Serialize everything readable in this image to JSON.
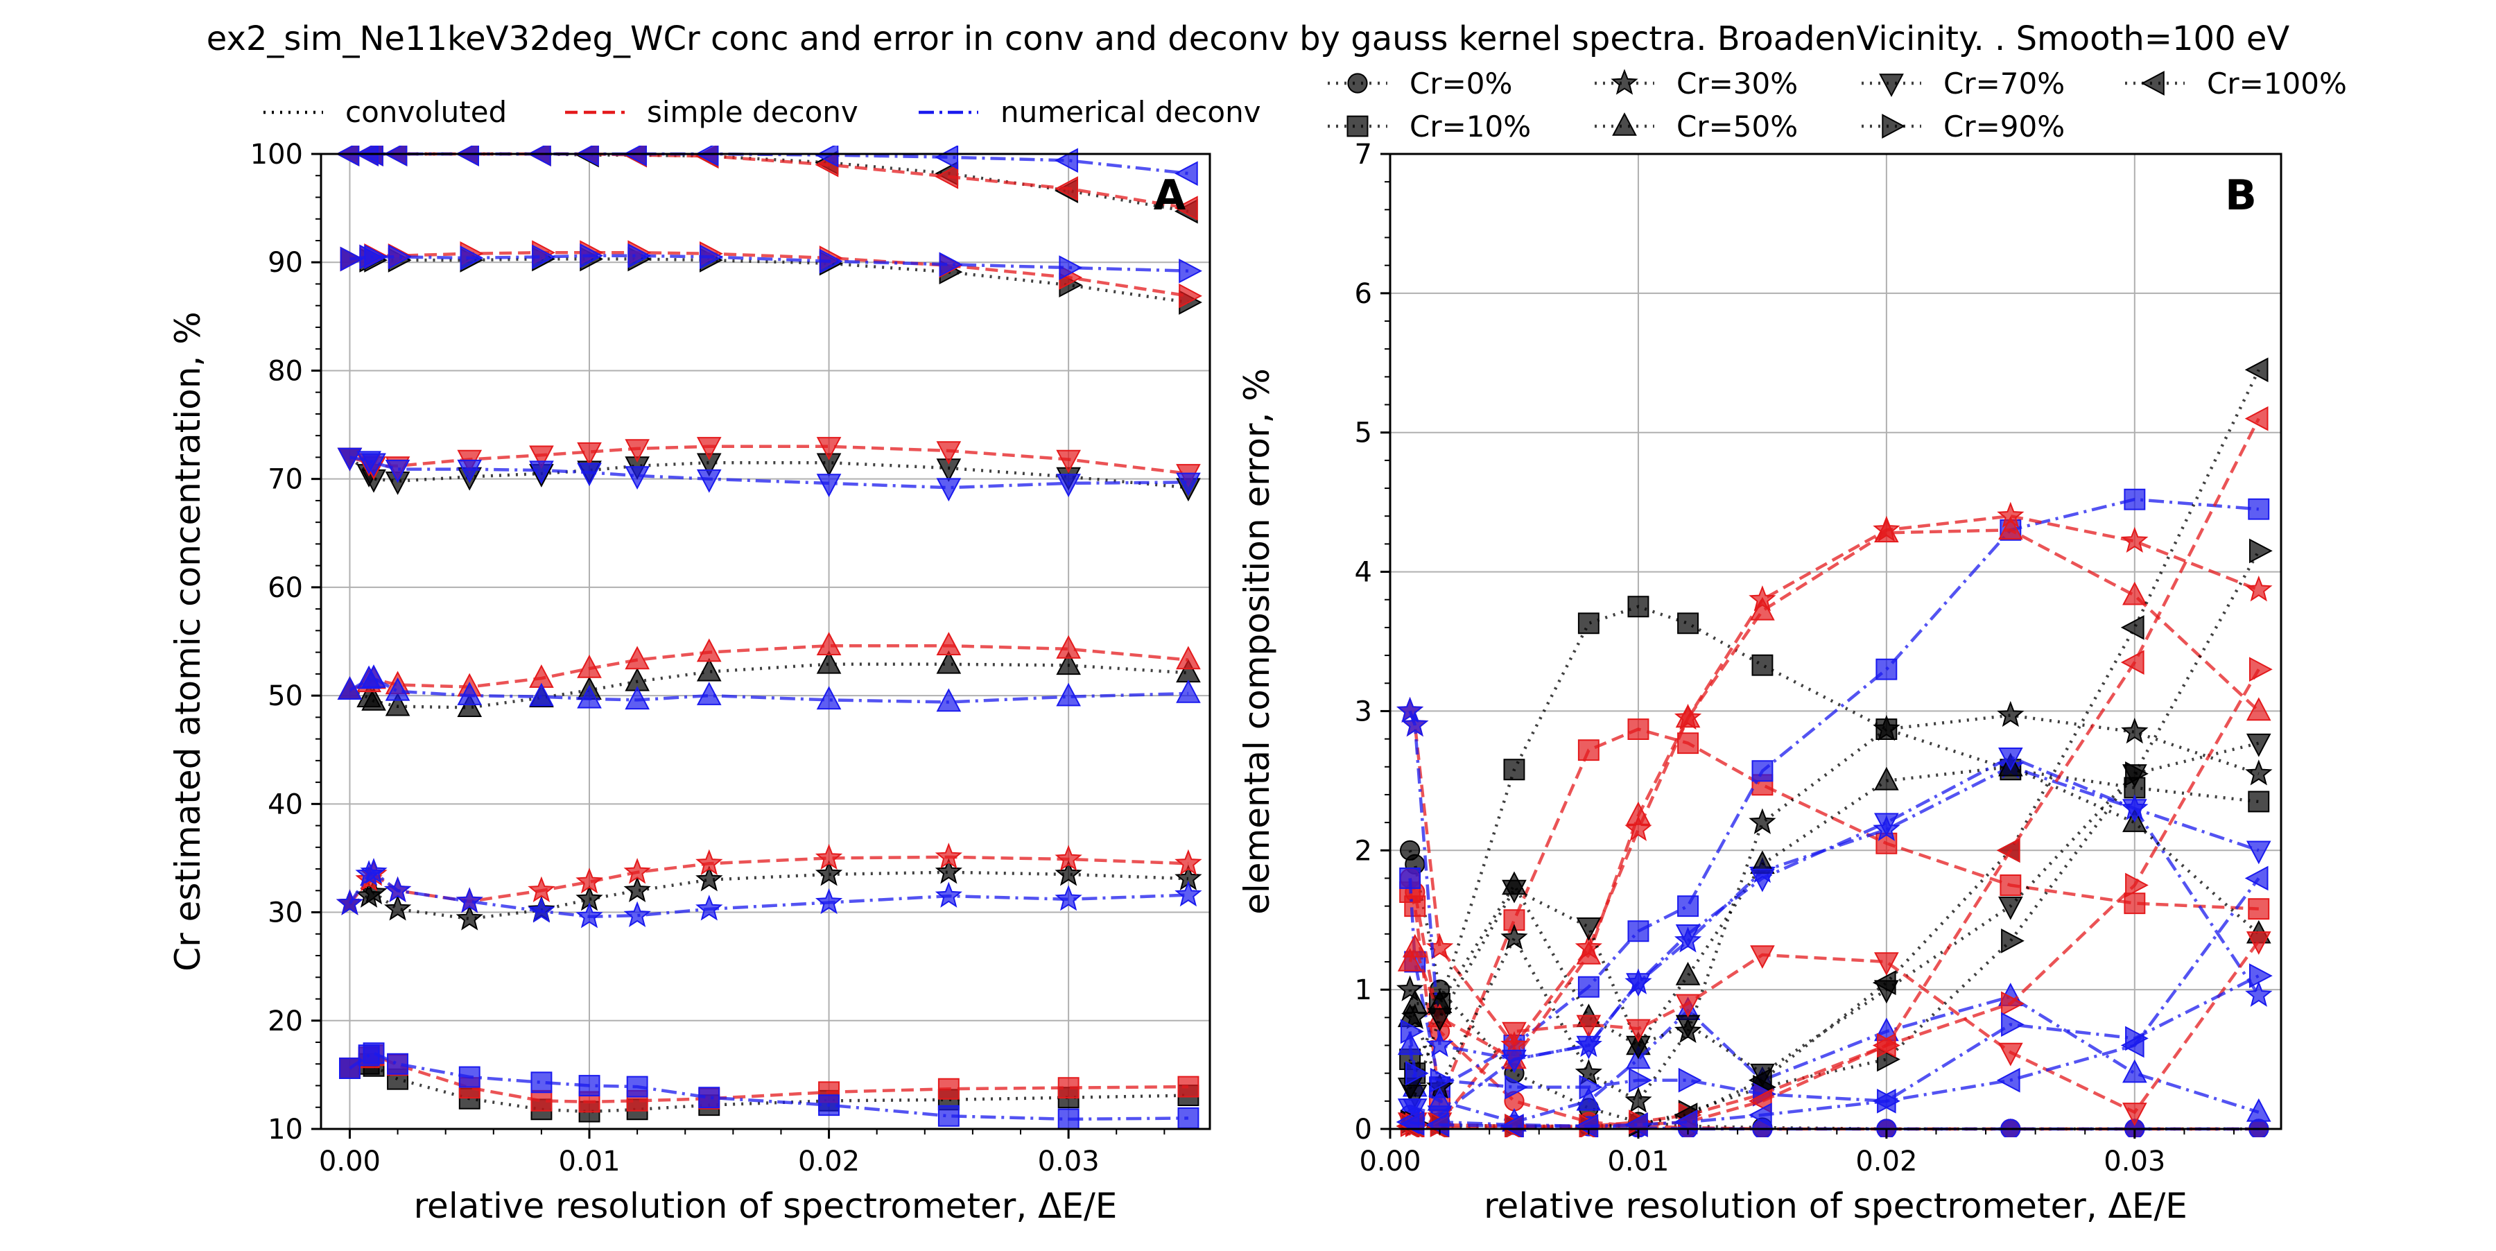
{
  "figure": {
    "title": "ex2_sim_Ne11keV32deg_WCr conc and error in conv and deconv by gauss kernel spectra. BroadenVicinity. . Smooth=100 eV"
  },
  "method_legend": [
    {
      "label": "convoluted",
      "color": "#000000",
      "dash": "dot"
    },
    {
      "label": "simple deconv",
      "color": "#e41a1c",
      "dash": "dash"
    },
    {
      "label": "numerical deconv",
      "color": "#1a1aee",
      "dash": "dashdot"
    }
  ],
  "composition_legend": [
    {
      "label": "Cr=0%",
      "marker": "circle"
    },
    {
      "label": "Cr=10%",
      "marker": "square"
    },
    {
      "label": "Cr=30%",
      "marker": "star"
    },
    {
      "label": "Cr=50%",
      "marker": "triangle-up"
    },
    {
      "label": "Cr=70%",
      "marker": "triangle-down"
    },
    {
      "label": "Cr=90%",
      "marker": "triangle-right"
    },
    {
      "label": "Cr=100%",
      "marker": "triangle-left"
    }
  ],
  "colors": {
    "convoluted": "#000000",
    "simple": "#e41a1c",
    "numerical": "#1a1aee",
    "grid": "#b0b0b0"
  },
  "chart_data": [
    {
      "type": "line",
      "panel_label": "A",
      "xlabel": "relative resolution of spectrometer, ΔE/E",
      "ylabel": "Cr estimated atomic concentration, %",
      "xlim": [
        -0.0012,
        0.0359
      ],
      "ylim": [
        10,
        100
      ],
      "xticks": [
        0.0,
        0.01,
        0.02,
        0.03
      ],
      "xtick_labels": [
        "0.00",
        "0.01",
        "0.02",
        "0.03"
      ],
      "yticks": [
        10,
        20,
        30,
        40,
        50,
        60,
        70,
        80,
        90,
        100
      ],
      "ytick_labels": [
        "10",
        "20",
        "30",
        "40",
        "50",
        "60",
        "70",
        "80",
        "90",
        "100"
      ],
      "grid": true,
      "x": [
        0.0,
        0.0008,
        0.001,
        0.002,
        0.005,
        0.008,
        0.01,
        0.012,
        0.015,
        0.02,
        0.025,
        0.03,
        0.035
      ],
      "series": [
        {
          "method": "convoluted",
          "marker": "triangle-left",
          "values": [
            100,
            100,
            100,
            100,
            100,
            100,
            99.9,
            99.9,
            99.8,
            99.2,
            98.2,
            96.6,
            94.7
          ]
        },
        {
          "method": "simple",
          "marker": "triangle-left",
          "values": [
            100,
            100,
            100,
            100,
            100,
            100,
            100,
            99.9,
            99.8,
            99.0,
            97.9,
            96.8,
            95.0
          ]
        },
        {
          "method": "numerical",
          "marker": "triangle-left",
          "values": [
            100,
            100,
            100,
            100,
            100,
            100,
            100,
            100,
            100,
            99.9,
            99.7,
            99.4,
            98.2
          ]
        },
        {
          "method": "convoluted",
          "marker": "triangle-right",
          "values": [
            90.3,
            90.2,
            90.2,
            90.2,
            90.2,
            90.3,
            90.3,
            90.3,
            90.2,
            89.9,
            89.1,
            87.9,
            86.3
          ]
        },
        {
          "method": "simple",
          "marker": "triangle-right",
          "values": [
            90.3,
            90.5,
            90.6,
            90.6,
            90.8,
            90.9,
            90.9,
            90.9,
            90.8,
            90.4,
            89.7,
            88.6,
            86.9
          ]
        },
        {
          "method": "numerical",
          "marker": "triangle-right",
          "values": [
            90.3,
            90.5,
            90.5,
            90.5,
            90.4,
            90.5,
            90.6,
            90.6,
            90.5,
            90.1,
            89.8,
            89.5,
            89.2
          ]
        },
        {
          "method": "convoluted",
          "marker": "triangle-down",
          "values": [
            72,
            70.5,
            70.0,
            69.8,
            70.2,
            70.5,
            70.8,
            71.2,
            71.5,
            71.5,
            71.0,
            70.2,
            69.2
          ]
        },
        {
          "method": "simple",
          "marker": "triangle-down",
          "values": [
            72,
            71.5,
            71.2,
            71.2,
            71.8,
            72.2,
            72.5,
            72.8,
            73.0,
            73.0,
            72.6,
            71.8,
            70.5
          ]
        },
        {
          "method": "numerical",
          "marker": "triangle-down",
          "values": [
            72,
            71.7,
            71.5,
            70.9,
            70.9,
            70.8,
            70.6,
            70.3,
            70.0,
            69.6,
            69.2,
            69.6,
            69.7
          ]
        },
        {
          "method": "convoluted",
          "marker": "triangle-up",
          "values": [
            50.5,
            49.8,
            49.5,
            49.0,
            48.9,
            49.8,
            50.5,
            51.3,
            52.2,
            52.9,
            52.9,
            52.8,
            52.1
          ]
        },
        {
          "method": "simple",
          "marker": "triangle-up",
          "values": [
            50.5,
            51.2,
            51.5,
            51.0,
            50.8,
            51.6,
            52.5,
            53.3,
            54.0,
            54.6,
            54.6,
            54.3,
            53.3
          ]
        },
        {
          "method": "numerical",
          "marker": "triangle-up",
          "values": [
            50.5,
            51.5,
            51.6,
            50.4,
            50.0,
            49.9,
            49.7,
            49.6,
            50.0,
            49.6,
            49.4,
            49.9,
            50.2
          ]
        },
        {
          "method": "convoluted",
          "marker": "star",
          "values": [
            30.8,
            31.5,
            31.8,
            30.3,
            29.4,
            30.2,
            31.2,
            32.0,
            33.0,
            33.5,
            33.7,
            33.5,
            33.1
          ]
        },
        {
          "method": "simple",
          "marker": "star",
          "values": [
            30.8,
            33.0,
            33.5,
            32.0,
            31.0,
            32.0,
            32.8,
            33.7,
            34.5,
            35.0,
            35.1,
            34.9,
            34.5
          ]
        },
        {
          "method": "numerical",
          "marker": "star",
          "values": [
            30.8,
            33.5,
            33.7,
            32.0,
            31.0,
            30.1,
            29.6,
            29.7,
            30.3,
            30.9,
            31.5,
            31.2,
            31.6
          ]
        },
        {
          "method": "convoluted",
          "marker": "square",
          "values": [
            15.6,
            16.0,
            15.8,
            14.6,
            12.8,
            11.8,
            11.6,
            11.8,
            12.2,
            12.6,
            12.7,
            12.9,
            13.1
          ]
        },
        {
          "method": "simple",
          "marker": "square",
          "values": [
            15.6,
            16.6,
            16.8,
            15.9,
            13.8,
            12.6,
            12.5,
            12.6,
            12.8,
            13.4,
            13.7,
            13.8,
            13.9
          ]
        },
        {
          "method": "numerical",
          "marker": "square",
          "values": [
            15.6,
            16.8,
            17.0,
            16.0,
            14.8,
            14.3,
            14.0,
            13.9,
            12.9,
            12.2,
            11.2,
            10.9,
            11.0
          ]
        }
      ]
    },
    {
      "type": "line",
      "panel_label": "B",
      "xlabel": "relative resolution of spectrometer, ΔE/E",
      "ylabel": "elemental composition error, %",
      "xlim": [
        0.0,
        0.0359
      ],
      "ylim": [
        0,
        7
      ],
      "xticks": [
        0.0,
        0.01,
        0.02,
        0.03
      ],
      "xtick_labels": [
        "0.00",
        "0.01",
        "0.02",
        "0.03"
      ],
      "yticks": [
        0,
        1,
        2,
        3,
        4,
        5,
        6,
        7
      ],
      "ytick_labels": [
        "0",
        "1",
        "2",
        "3",
        "4",
        "5",
        "6",
        "7"
      ],
      "grid": true,
      "x": [
        0.0008,
        0.001,
        0.002,
        0.005,
        0.008,
        0.01,
        0.012,
        0.015,
        0.02,
        0.025,
        0.03,
        0.035
      ],
      "series": [
        {
          "method": "convoluted",
          "marker": "circle",
          "values": [
            2.0,
            1.9,
            1.0,
            0.4,
            0.15,
            0.05,
            0.02,
            0.01,
            0.0,
            0.0,
            0.0,
            0.0
          ]
        },
        {
          "method": "simple",
          "marker": "circle",
          "values": [
            1.8,
            1.7,
            0.7,
            0.2,
            0.05,
            0.02,
            0.01,
            0.0,
            0.0,
            0.0,
            0.0,
            0.0
          ]
        },
        {
          "method": "numerical",
          "marker": "circle",
          "values": [
            0.1,
            0.08,
            0.05,
            0.03,
            0.02,
            0.01,
            0.0,
            0.0,
            0.0,
            0.0,
            0.0,
            0.0
          ]
        },
        {
          "method": "convoluted",
          "marker": "square",
          "values": [
            0.5,
            0.4,
            0.9,
            2.58,
            3.63,
            3.75,
            3.63,
            3.33,
            2.87,
            2.58,
            2.45,
            2.35
          ]
        },
        {
          "method": "simple",
          "marker": "square",
          "values": [
            1.7,
            1.6,
            0.2,
            1.5,
            2.72,
            2.87,
            2.77,
            2.47,
            2.05,
            1.75,
            1.62,
            1.58
          ]
        },
        {
          "method": "numerical",
          "marker": "square",
          "values": [
            1.8,
            1.2,
            0.3,
            0.6,
            1.02,
            1.42,
            1.6,
            2.57,
            3.3,
            4.3,
            4.52,
            4.45
          ]
        },
        {
          "method": "convoluted",
          "marker": "star",
          "values": [
            1.0,
            0.8,
            0.3,
            1.37,
            0.4,
            0.2,
            0.7,
            2.2,
            2.87,
            2.97,
            2.85,
            2.55
          ]
        },
        {
          "method": "simple",
          "marker": "star",
          "values": [
            3.0,
            2.9,
            1.3,
            0.6,
            1.3,
            2.15,
            2.95,
            3.8,
            4.3,
            4.4,
            4.22,
            3.87
          ]
        },
        {
          "method": "numerical",
          "marker": "star",
          "values": [
            3.0,
            2.9,
            0.6,
            0.5,
            0.6,
            1.05,
            1.35,
            1.85,
            2.15,
            2.6,
            2.3,
            0.96
          ]
        },
        {
          "method": "convoluted",
          "marker": "triangle-up",
          "values": [
            0.8,
            0.9,
            0.9,
            1.75,
            0.8,
            0.6,
            1.1,
            1.9,
            2.5,
            2.6,
            2.2,
            1.4
          ]
        },
        {
          "method": "simple",
          "marker": "triangle-up",
          "values": [
            1.2,
            1.3,
            0.8,
            0.5,
            1.25,
            2.25,
            2.95,
            3.72,
            4.28,
            4.3,
            3.83,
            3.0
          ]
        },
        {
          "method": "numerical",
          "marker": "triangle-up",
          "values": [
            0.6,
            0.3,
            0.2,
            0.05,
            0.2,
            0.5,
            0.85,
            0.35,
            0.7,
            0.95,
            0.4,
            0.12
          ]
        },
        {
          "method": "convoluted",
          "marker": "triangle-down",
          "values": [
            0.3,
            0.25,
            0.8,
            1.72,
            1.45,
            0.6,
            0.75,
            0.4,
            1.0,
            1.6,
            2.55,
            2.77
          ]
        },
        {
          "method": "simple",
          "marker": "triangle-down",
          "values": [
            0.05,
            0.05,
            0.05,
            0.7,
            0.75,
            0.72,
            0.9,
            1.25,
            1.2,
            0.55,
            0.12,
            1.35
          ]
        },
        {
          "method": "numerical",
          "marker": "triangle-down",
          "values": [
            0.15,
            0.15,
            0.1,
            0.5,
            0.6,
            1.05,
            1.4,
            1.8,
            2.2,
            2.67,
            2.3,
            2.0
          ]
        },
        {
          "method": "convoluted",
          "marker": "triangle-right",
          "values": [
            0.05,
            0.04,
            0.03,
            0.02,
            0.02,
            0.03,
            0.12,
            0.3,
            0.5,
            1.35,
            2.55,
            4.15
          ]
        },
        {
          "method": "simple",
          "marker": "triangle-right",
          "values": [
            0.03,
            0.03,
            0.03,
            0.02,
            0.02,
            0.05,
            0.1,
            0.25,
            0.6,
            0.9,
            1.75,
            3.3
          ]
        },
        {
          "method": "numerical",
          "marker": "triangle-right",
          "values": [
            0.7,
            0.4,
            0.35,
            0.3,
            0.3,
            0.35,
            0.35,
            0.25,
            0.2,
            0.75,
            0.65,
            1.1
          ]
        },
        {
          "method": "convoluted",
          "marker": "triangle-left",
          "values": [
            0.02,
            0.02,
            0.01,
            0.01,
            0.01,
            0.03,
            0.1,
            0.35,
            1.05,
            2.0,
            3.6,
            5.45
          ]
        },
        {
          "method": "simple",
          "marker": "triangle-left",
          "values": [
            0.02,
            0.02,
            0.01,
            0.01,
            0.01,
            0.03,
            0.05,
            0.2,
            0.6,
            2.0,
            3.35,
            5.1
          ]
        },
        {
          "method": "numerical",
          "marker": "triangle-left",
          "values": [
            0.05,
            0.04,
            0.03,
            0.02,
            0.02,
            0.03,
            0.05,
            0.1,
            0.2,
            0.35,
            0.6,
            1.8
          ]
        }
      ]
    }
  ]
}
